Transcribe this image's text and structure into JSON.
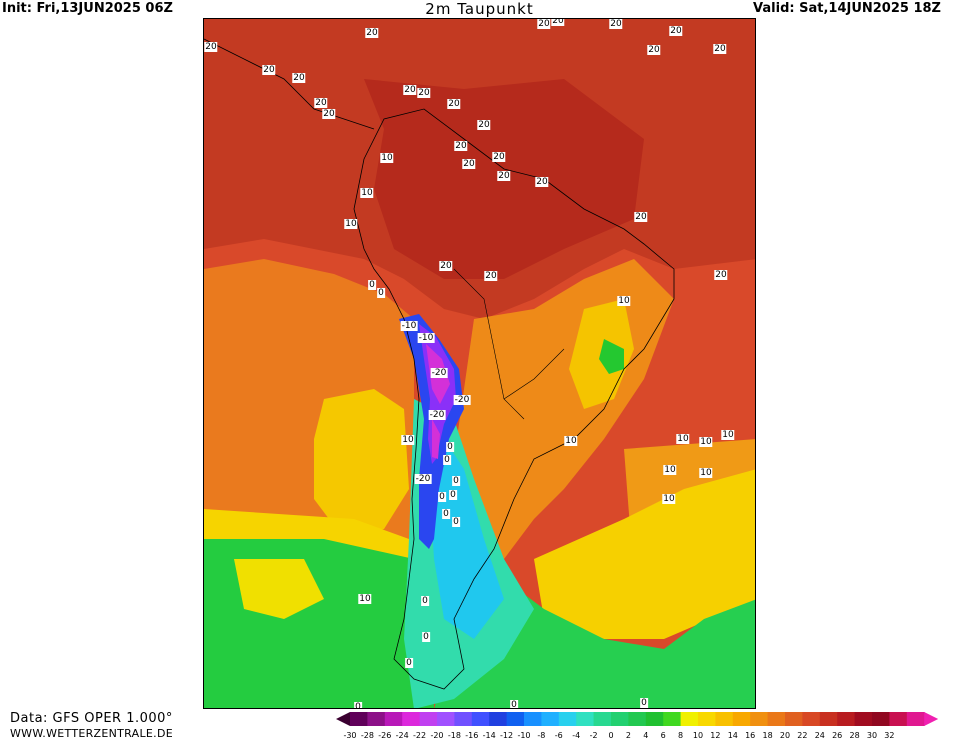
{
  "header": {
    "init": "Init: Fri,13JUN2025 06Z",
    "title": "2m Taupunkt",
    "valid": "Valid: Sat,14JUN2025 18Z"
  },
  "footer": {
    "data_source": "Data: GFS OPER 1.000°",
    "website": "WWW.WETTERZENTRALE.DE"
  },
  "colors": {
    "ocean_warm": "#d9492a",
    "tropical": "#c8361d",
    "orange": "#ef8a17",
    "yellow": "#f5d200",
    "green": "#22cc44",
    "cyan": "#33ddaa",
    "blue": "#2244ee",
    "purple": "#cc22dd"
  },
  "contour_labels": [
    "20",
    "20",
    "20",
    "20",
    "20",
    "20",
    "20",
    "20",
    "20",
    "20",
    "20",
    "20",
    "20",
    "20",
    "20",
    "20",
    "20",
    "20",
    "20",
    "20",
    "20",
    "20",
    "20",
    "20",
    "20",
    "10",
    "10",
    "10",
    "10",
    "10",
    "10",
    "10",
    "10",
    "10",
    "10",
    "10",
    "10",
    "10",
    "0",
    "0",
    "0",
    "0",
    "0",
    "0",
    "0",
    "0",
    "0",
    "0",
    "0",
    "0",
    "0",
    "0",
    "0",
    "-10",
    "-10",
    "-20",
    "-20",
    "-20",
    "-20",
    "-20",
    "-20"
  ],
  "legend": {
    "colors": [
      "#3a0030",
      "#60005a",
      "#8c1088",
      "#b818b8",
      "#dc28dc",
      "#c040f0",
      "#a050ff",
      "#7050ff",
      "#4050ff",
      "#2040e0",
      "#1060f0",
      "#1890ff",
      "#20b0ff",
      "#28d0ee",
      "#30e0c0",
      "#28d890",
      "#22d070",
      "#22c850",
      "#20c030",
      "#40d820",
      "#f0f000",
      "#f8d800",
      "#f8c000",
      "#f8a800",
      "#f09010",
      "#ea7818",
      "#e06020",
      "#d84824",
      "#c83020",
      "#b81c20",
      "#a00c20",
      "#900820",
      "#c81050",
      "#e01890",
      "#f020b0"
    ],
    "ticks": [
      "-30",
      "-28",
      "-26",
      "-24",
      "-22",
      "-20",
      "-18",
      "-16",
      "-14",
      "-12",
      "-10",
      "-8",
      "-6",
      "-4",
      "-2",
      "0",
      "2",
      "4",
      "6",
      "8",
      "10",
      "12",
      "14",
      "16",
      "18",
      "20",
      "22",
      "24",
      "26",
      "28",
      "30",
      "32"
    ]
  }
}
